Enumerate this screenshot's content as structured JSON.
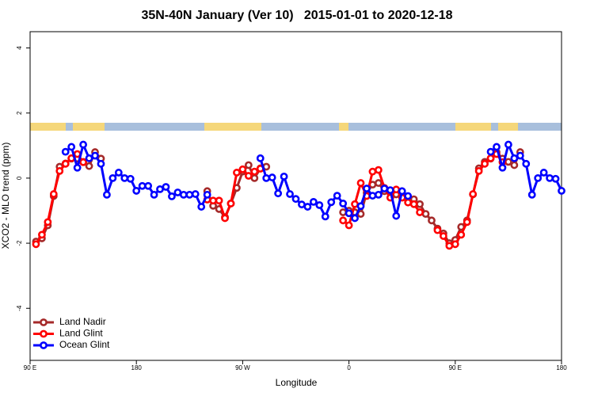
{
  "chart_data": {
    "type": "line",
    "title": "35N-40N January (Ver 10)   2015-01-01 to 2020-12-18",
    "x_label": "Longitude",
    "y_label": "XCO2 - MLO trend (ppm)",
    "xlim": [
      90,
      540
    ],
    "ylim": [
      -5.6,
      4.5
    ],
    "xticks": [
      {
        "value": 90,
        "label": "90 E"
      },
      {
        "value": 180,
        "label": "180"
      },
      {
        "value": 270,
        "label": "90 W"
      },
      {
        "value": 360,
        "label": "0"
      },
      {
        "value": 450,
        "label": "90 E"
      },
      {
        "value": 540,
        "label": "180"
      }
    ],
    "yticks": [
      4,
      2,
      0,
      -2,
      -4
    ],
    "legend": "bottom-left",
    "x": [
      90,
      95,
      100,
      105,
      110,
      115,
      120,
      125,
      130,
      135,
      140,
      145,
      150,
      155,
      160,
      165,
      170,
      175,
      180,
      185,
      190,
      195,
      200,
      205,
      210,
      215,
      220,
      225,
      230,
      235,
      240,
      245,
      250,
      255,
      260,
      265,
      270,
      275,
      280,
      285,
      290,
      295,
      300,
      305,
      310,
      315,
      320,
      325,
      330,
      335,
      340,
      345,
      350,
      355,
      360,
      365,
      370,
      375,
      380,
      385,
      390,
      395,
      400,
      405,
      410,
      415,
      420,
      425,
      430,
      435,
      440,
      445,
      450,
      455,
      460,
      465,
      470,
      475,
      480,
      485,
      490,
      495,
      500,
      505,
      510,
      515,
      520,
      525,
      530,
      535,
      540
    ],
    "series": [
      {
        "name": "Land Nadir",
        "color": "#a52a2a",
        "values": [
          null,
          -1.95,
          -1.85,
          -1.45,
          -0.55,
          0.35,
          0.45,
          0.6,
          0.6,
          0.5,
          0.37,
          0.8,
          0.6,
          null,
          null,
          null,
          null,
          null,
          null,
          null,
          null,
          null,
          null,
          null,
          null,
          null,
          null,
          null,
          null,
          null,
          -0.4,
          -0.85,
          -0.95,
          -1.2,
          -0.78,
          -0.3,
          0.2,
          0.4,
          0,
          0.3,
          0.35,
          null,
          null,
          null,
          null,
          null,
          null,
          null,
          null,
          null,
          null,
          null,
          null,
          -1.05,
          -1.0,
          -1.05,
          -1.1,
          -0.45,
          -0.2,
          -0.15,
          -0.4,
          -0.45,
          -0.5,
          -0.55,
          -0.6,
          -0.65,
          -0.8,
          -1.1,
          -1.3,
          -1.55,
          -1.7,
          -2.0,
          -1.9,
          -1.5,
          -1.3,
          -0.5,
          0.3,
          0.5,
          0.6,
          0.8,
          0.6,
          0.5,
          0.4,
          0.8,
          null,
          null,
          null,
          null,
          null,
          null,
          null
        ]
      },
      {
        "name": "Land Glint",
        "color": "#ff0000",
        "values": [
          null,
          -2.03,
          -1.74,
          -1.35,
          -0.49,
          0.22,
          0.44,
          0.61,
          0.74,
          0.49,
          null,
          null,
          null,
          null,
          null,
          null,
          null,
          null,
          null,
          null,
          null,
          null,
          null,
          null,
          null,
          null,
          null,
          null,
          null,
          null,
          -0.66,
          -0.69,
          -0.69,
          -1.23,
          -0.78,
          0.17,
          0.27,
          0.07,
          0.2,
          0.29,
          null,
          null,
          null,
          null,
          null,
          null,
          null,
          null,
          null,
          null,
          null,
          null,
          null,
          -1.3,
          -1.45,
          -0.8,
          -0.15,
          -0.55,
          0.2,
          0.25,
          -0.3,
          -0.6,
          -0.35,
          -0.6,
          -0.75,
          -0.8,
          -1.05,
          null,
          null,
          -1.6,
          -1.78,
          -2.08,
          -2.03,
          -1.74,
          -1.35,
          -0.49,
          0.22,
          0.44,
          0.61,
          0.74,
          0.49,
          null,
          null,
          null,
          null,
          null,
          null,
          null,
          null,
          null,
          null
        ]
      },
      {
        "name": "Ocean Glint",
        "color": "#0000ff",
        "values": [
          null,
          null,
          null,
          null,
          null,
          null,
          0.81,
          0.96,
          0.32,
          1.03,
          0.61,
          0.69,
          0.44,
          -0.51,
          0,
          0.17,
          0,
          -0.02,
          -0.39,
          -0.24,
          -0.24,
          -0.51,
          -0.34,
          -0.27,
          -0.56,
          -0.44,
          -0.51,
          -0.51,
          -0.49,
          -0.88,
          -0.51,
          null,
          null,
          null,
          null,
          null,
          null,
          null,
          null,
          0.61,
          0,
          0.02,
          -0.47,
          0.05,
          -0.49,
          -0.64,
          -0.81,
          -0.88,
          -0.73,
          -0.83,
          -1.18,
          -0.74,
          -0.54,
          -0.78,
          -1.08,
          -1.23,
          -0.86,
          -0.32,
          -0.54,
          -0.51,
          -0.32,
          -0.37,
          -1.16,
          -0.4,
          -0.55,
          null,
          null,
          null,
          null,
          null,
          null,
          null,
          null,
          null,
          null,
          null,
          null,
          null,
          0.81,
          0.96,
          0.32,
          1.03,
          0.61,
          0.69,
          0.44,
          -0.51,
          0,
          0.17,
          0,
          -0.02,
          -0.39
        ]
      }
    ]
  }
}
